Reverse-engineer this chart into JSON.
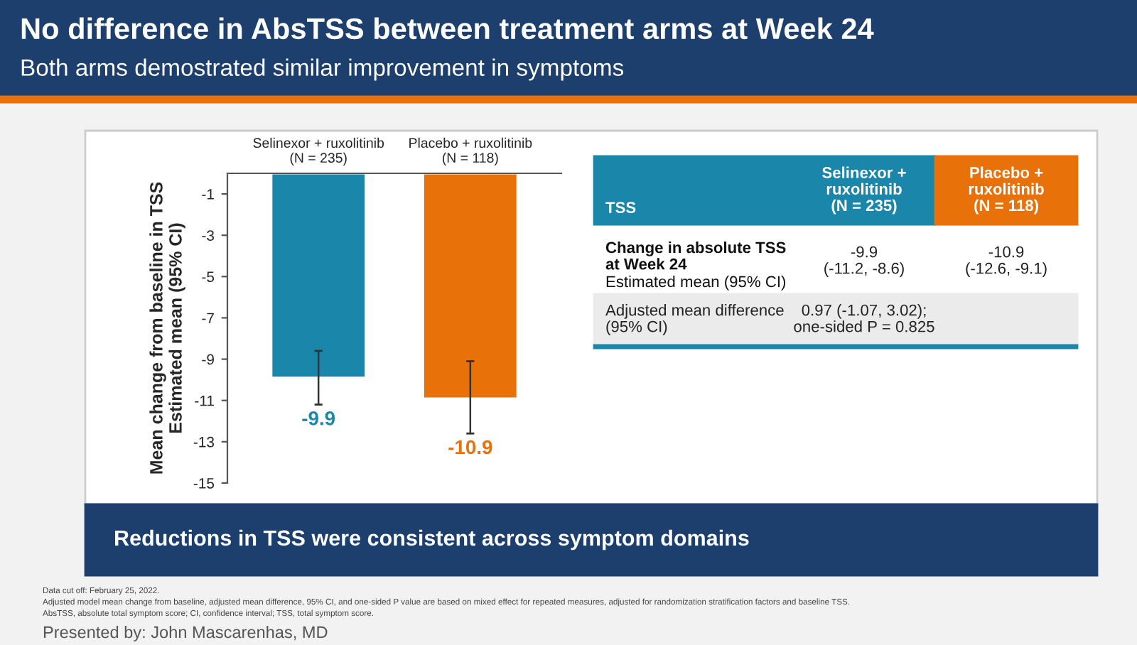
{
  "chart_data": {
    "type": "bar",
    "title": "No difference in AbsTSS between treatment arms at Week 24",
    "subtitle": "Both arms demostrated similar improvement in symptoms",
    "categories": [
      "Selinexor + ruxolitinib\n(N = 235)",
      "Placebo + ruxolitinib\n(N = 118)"
    ],
    "values": [
      -9.9,
      -10.9
    ],
    "colors": [
      "#1a86aa",
      "#e8710a"
    ],
    "errors": [
      [
        -11.2,
        -8.6
      ],
      [
        -12.6,
        -9.1
      ]
    ],
    "data_labels": true,
    "ylabel": "Mean change from baseline in TSS\nEstimated mean (95% CI)",
    "ylim": [
      -15,
      0
    ],
    "yticks": [
      -15,
      -13,
      -11,
      -9,
      -7,
      -5,
      -3,
      -1
    ],
    "grid": false,
    "legend": false,
    "annotations": [
      "Reductions in TSS were consistent across symptom domains",
      "TSS",
      "Selinexor +\nruxolitinib\n(N = 235)",
      "Placebo +\nruxolitinib\n(N = 118)",
      "Change in absolute TSS\nat Week 24",
      "Estimated mean (95% CI)",
      "-9.9\n(-11.2, -8.6)",
      "-10.9\n(-12.6, -9.1)",
      "Adjusted mean difference\n(95% CI)",
      "0.97 (-1.07, 3.02);\none-sided P = 0.825",
      "Data cut off: February 25, 2022.",
      "Adjusted model mean change from baseline, adjusted mean difference, 95% CI, and one-sided P value are based on mixed effect for repeated measures, adjusted for randomization stratification factors and baseline TSS.",
      "AbsTSS, absolute total symptom score; CI, confidence interval; TSS, total symptom score.",
      "Presented by: John Mascarenhas, MD"
    ]
  }
}
